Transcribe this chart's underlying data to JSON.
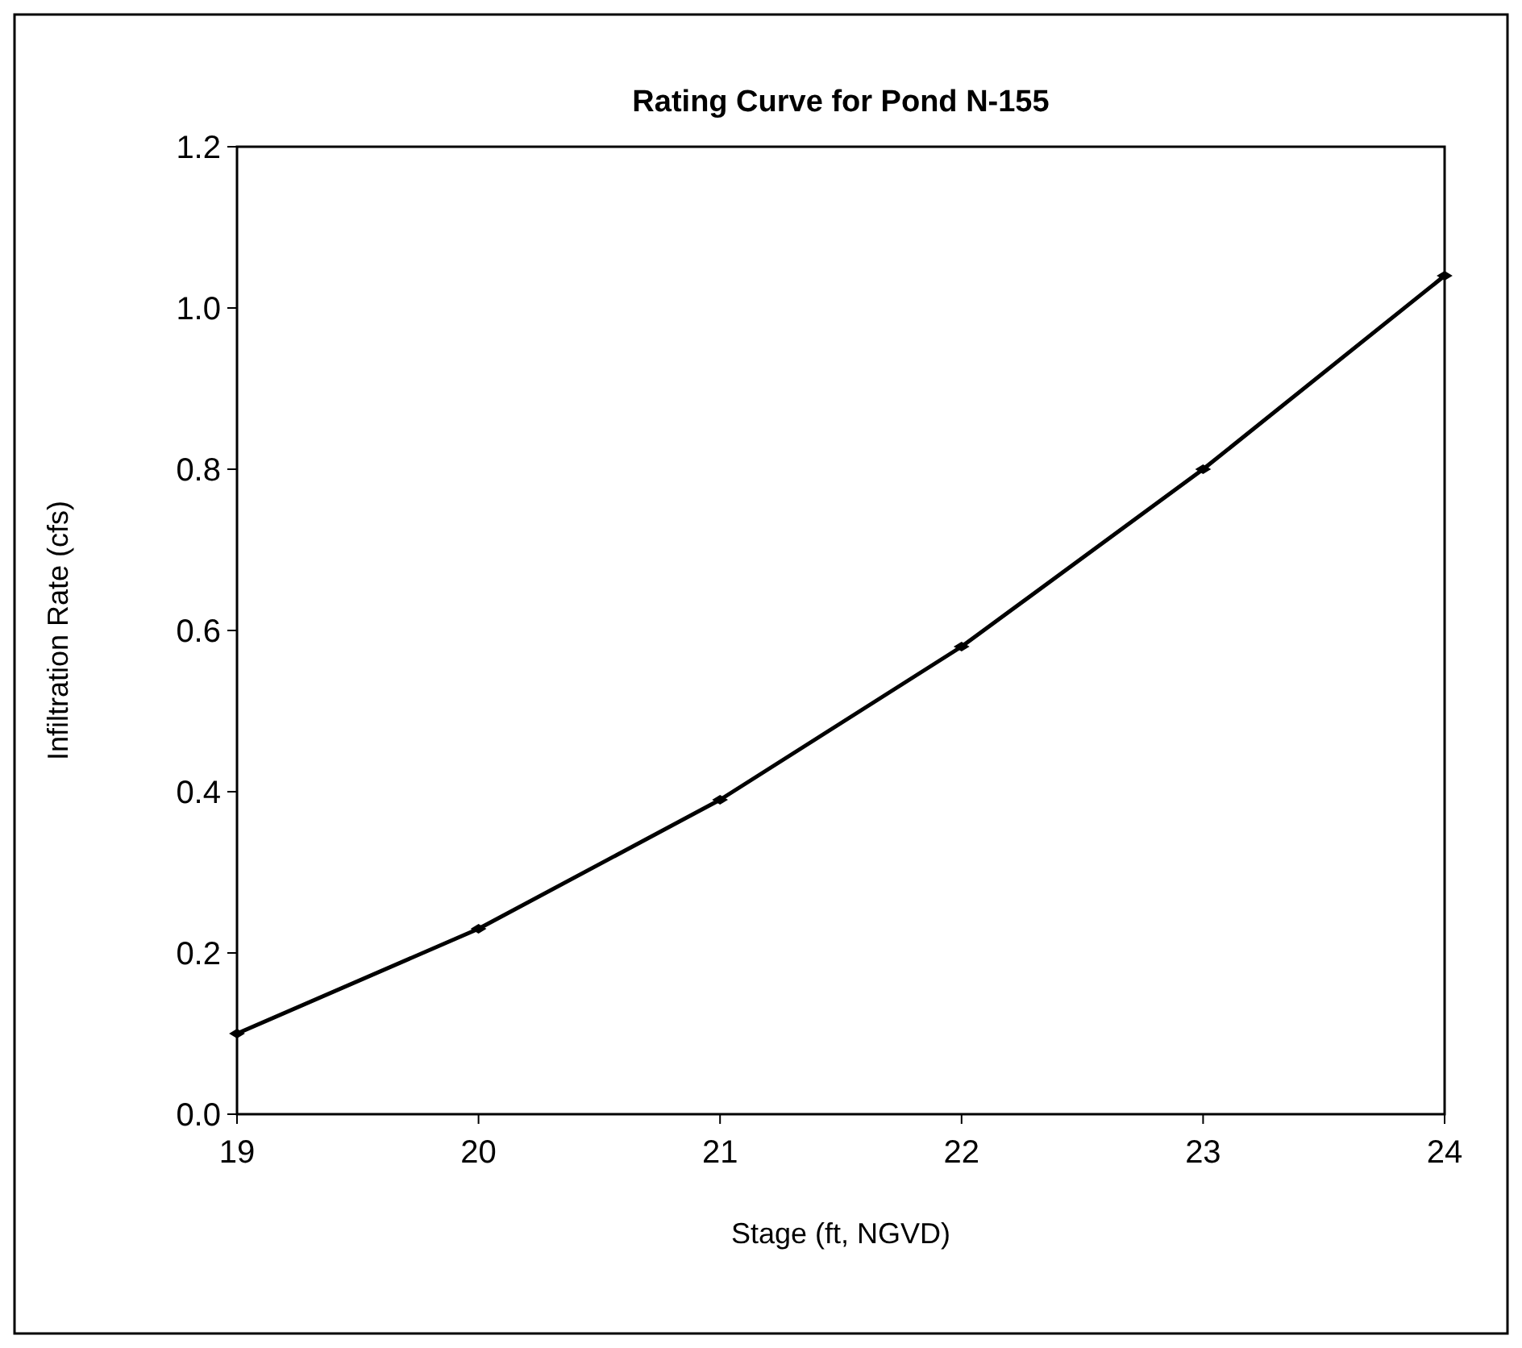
{
  "chart_data": {
    "type": "line",
    "title": "Rating Curve for Pond N-155",
    "xlabel": "Stage (ft, NGVD)",
    "ylabel": "Infiltration Rate (cfs)",
    "x": [
      19,
      20,
      21,
      22,
      23,
      24
    ],
    "series": [
      {
        "color": "#000000",
        "values": [
          0.1,
          0.23,
          0.39,
          0.58,
          0.8,
          1.04
        ]
      }
    ],
    "xlim": [
      19,
      24
    ],
    "xticks": [
      19,
      20,
      21,
      22,
      23,
      24
    ],
    "ylim": [
      0,
      1.2
    ],
    "yticks": [
      {
        "value": 0,
        "label": "0.0"
      },
      {
        "value": 0.2,
        "label": "0.2"
      },
      {
        "value": 0.4,
        "label": "0.4"
      },
      {
        "value": 0.6,
        "label": "0.6"
      },
      {
        "value": 0.8,
        "label": "0.8"
      },
      {
        "value": 1,
        "label": "1.0"
      },
      {
        "value": 1.2,
        "label": "1.2"
      }
    ],
    "grid": false,
    "marker": "diamond",
    "line_style": "solid"
  }
}
